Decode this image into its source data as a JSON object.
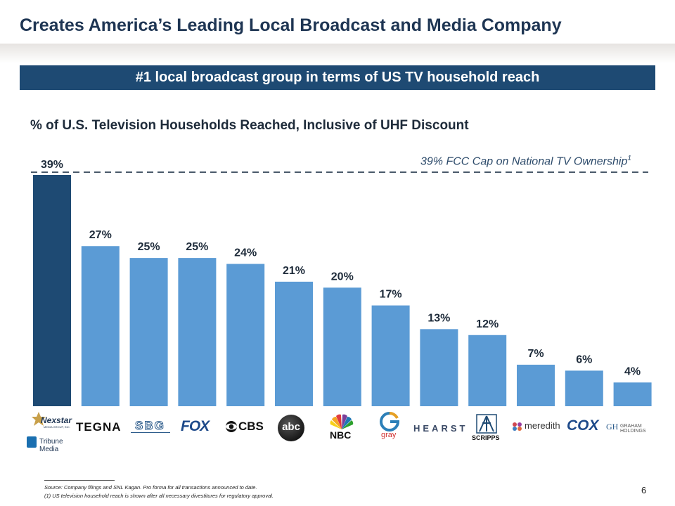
{
  "title": "Creates America’s Leading Local Broadcast and Media Company",
  "banner": "#1 local broadcast group in terms of US TV household reach",
  "chart_data": {
    "type": "bar",
    "title": "% of U.S. Television Households Reached, Inclusive of UHF Discount",
    "categories": [
      "Nexstar / Tribune Media",
      "TEGNA",
      "SBG",
      "FOX",
      "CBS",
      "abc",
      "NBC",
      "gray",
      "HEARST",
      "SCRIPPS",
      "meredith",
      "COX",
      "GRAHAM HOLDINGS"
    ],
    "values": [
      39,
      27,
      25,
      25,
      24,
      21,
      20,
      17,
      13,
      12,
      7,
      6,
      4
    ],
    "data_labels": [
      "39%",
      "27%",
      "25%",
      "25%",
      "24%",
      "21%",
      "20%",
      "17%",
      "13%",
      "12%",
      "7%",
      "6%",
      "4%"
    ],
    "ylim": [
      0,
      39
    ],
    "reference_line": {
      "value": 39,
      "label": "39% FCC Cap on National TV Ownership",
      "footnote_marker": "1"
    },
    "colors": {
      "highlight": "#1e4a73",
      "bar": "#5b9bd5",
      "label": "#1e2b3a",
      "banner": "#1e4a73"
    }
  },
  "logos": {
    "nexstar": "Nexstar",
    "nexstar_sub": "MEDIA GROUP, INC.",
    "tribune": "Tribune Media",
    "tegna": "TEGNA",
    "sbg": "SBG",
    "fox": "FOX",
    "cbs": "CBS",
    "abc": "abc",
    "nbc": "NBC",
    "gray": "gray",
    "hearst": "HEARST",
    "scripps": "SCRIPPS",
    "meredith": "meredith",
    "cox": "COX",
    "graham": "GRAHAM HOLDINGS",
    "graham_mark": "GH"
  },
  "footnotes": {
    "source": "Source: Company filings and SNL Kagan. Pro forma for all transactions announced to date.",
    "note1": "(1)      US television household reach is shown after all necessary divestitures for regulatory approval."
  },
  "page_number": "6"
}
